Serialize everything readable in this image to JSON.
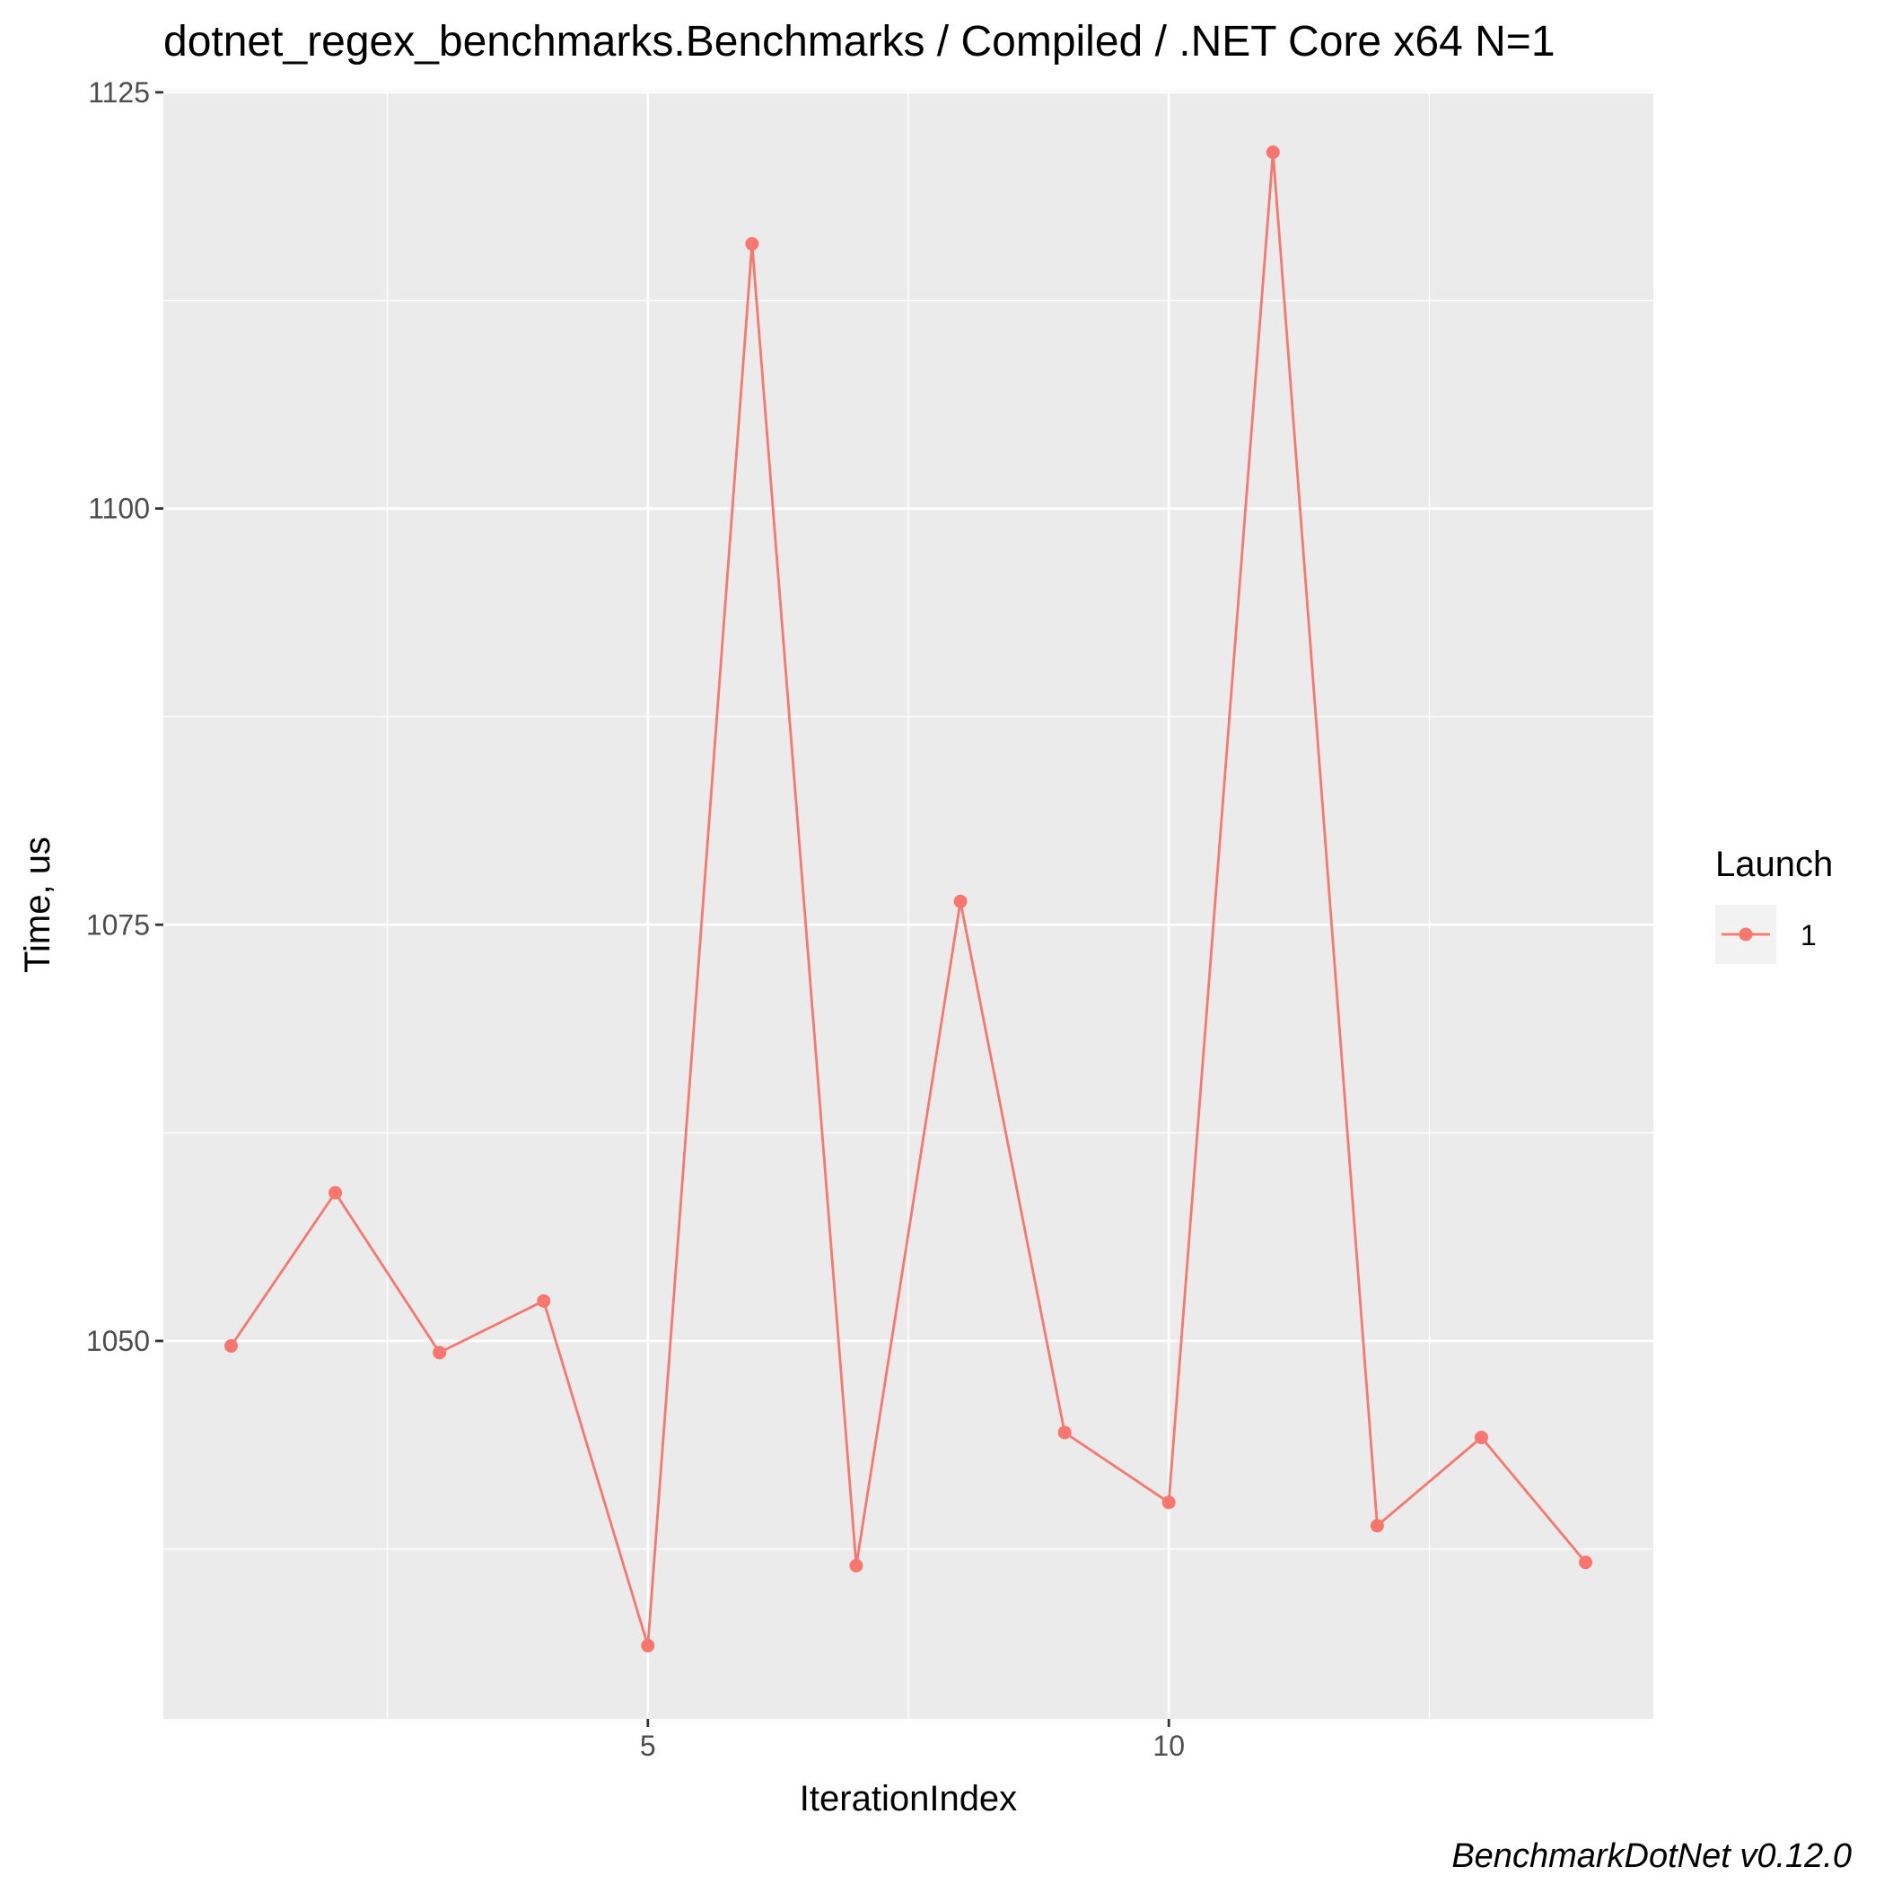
{
  "chart_data": {
    "type": "line",
    "title": "dotnet_regex_benchmarks.Benchmarks / Compiled / .NET Core x64 N=1",
    "xlabel": "IterationIndex",
    "ylabel": "Time, us",
    "caption": "BenchmarkDotNet v0.12.0",
    "x": [
      1,
      2,
      3,
      4,
      5,
      6,
      7,
      8,
      9,
      10,
      11,
      12,
      13,
      14
    ],
    "series": [
      {
        "name": "1",
        "color": "#F8766D",
        "values": [
          1049.7,
          1058.9,
          1049.3,
          1052.4,
          1031.7,
          1115.9,
          1036.5,
          1076.4,
          1044.5,
          1040.3,
          1121.4,
          1038.9,
          1044.2,
          1036.7
        ]
      }
    ],
    "xlim": [
      0.35,
      14.65
    ],
    "ylim": [
      1027.3,
      1125.1
    ],
    "x_ticks": [
      5,
      10
    ],
    "x_tick_labels": [
      "5",
      "10"
    ],
    "x_minor_ticks": [
      2.5,
      7.5,
      12.5
    ],
    "y_ticks": [
      1050,
      1075,
      1100,
      1125
    ],
    "y_tick_labels": [
      "1050",
      "1075",
      "1100",
      "1125"
    ],
    "y_minor_ticks": [
      1037.5,
      1062.5,
      1087.5,
      1112.5
    ],
    "grid": true,
    "legend": {
      "title": "Launch",
      "position": "right"
    },
    "panel_background": "#EBEBEB",
    "grid_color": "#FFFFFF"
  }
}
